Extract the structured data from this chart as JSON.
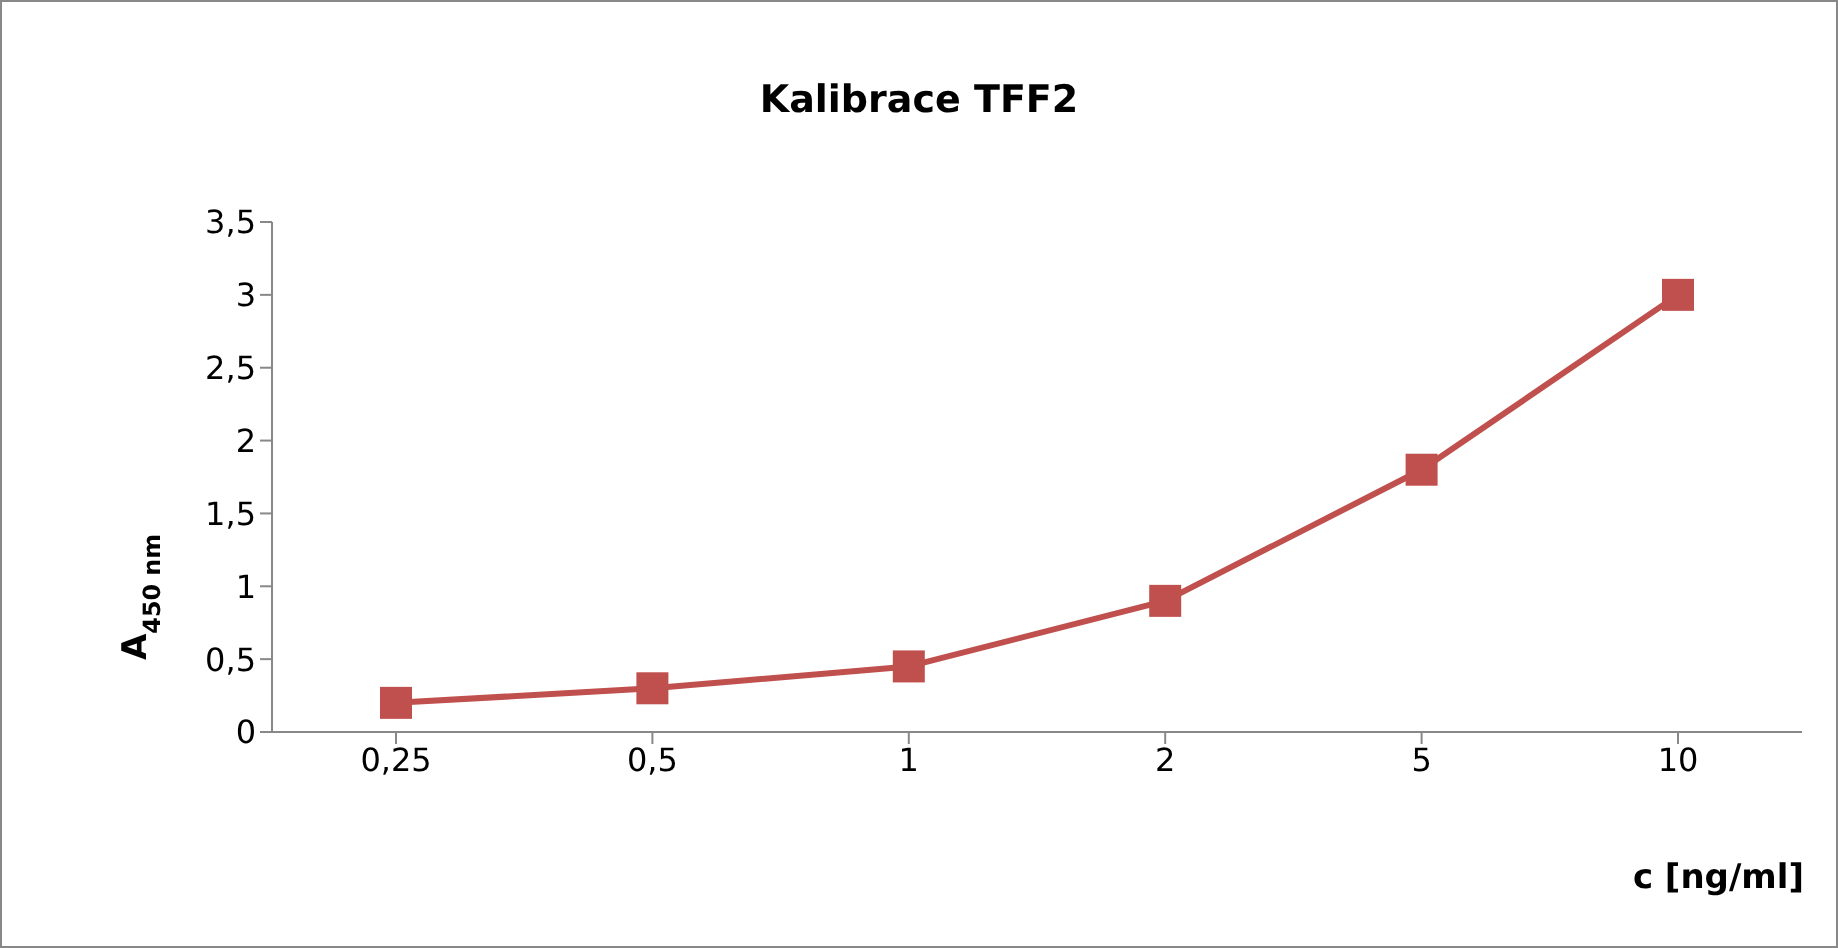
{
  "chart_data": {
    "type": "line",
    "title": "Kalibrace TFF2",
    "xlabel": "c [ng/ml]",
    "ylabel": "A$_{450 nm}$",
    "categories": [
      "0,25",
      "0,5",
      "1",
      "2",
      "5",
      "10"
    ],
    "series": [
      {
        "color": "#c0504d",
        "values": [
          0.2,
          0.3,
          0.45,
          0.9,
          1.8,
          3.0
        ]
      }
    ],
    "ylim": [
      0,
      3.5
    ],
    "yticks": [
      0,
      {
        "value": 0.5,
        "label": "0,5"
      },
      1,
      {
        "value": 1.5,
        "label": "1,5"
      },
      2,
      {
        "value": 2.5,
        "label": "2,5"
      },
      3,
      {
        "value": 3.5,
        "label": "3,5"
      }
    ],
    "marker": "square",
    "line_style": "solid"
  }
}
